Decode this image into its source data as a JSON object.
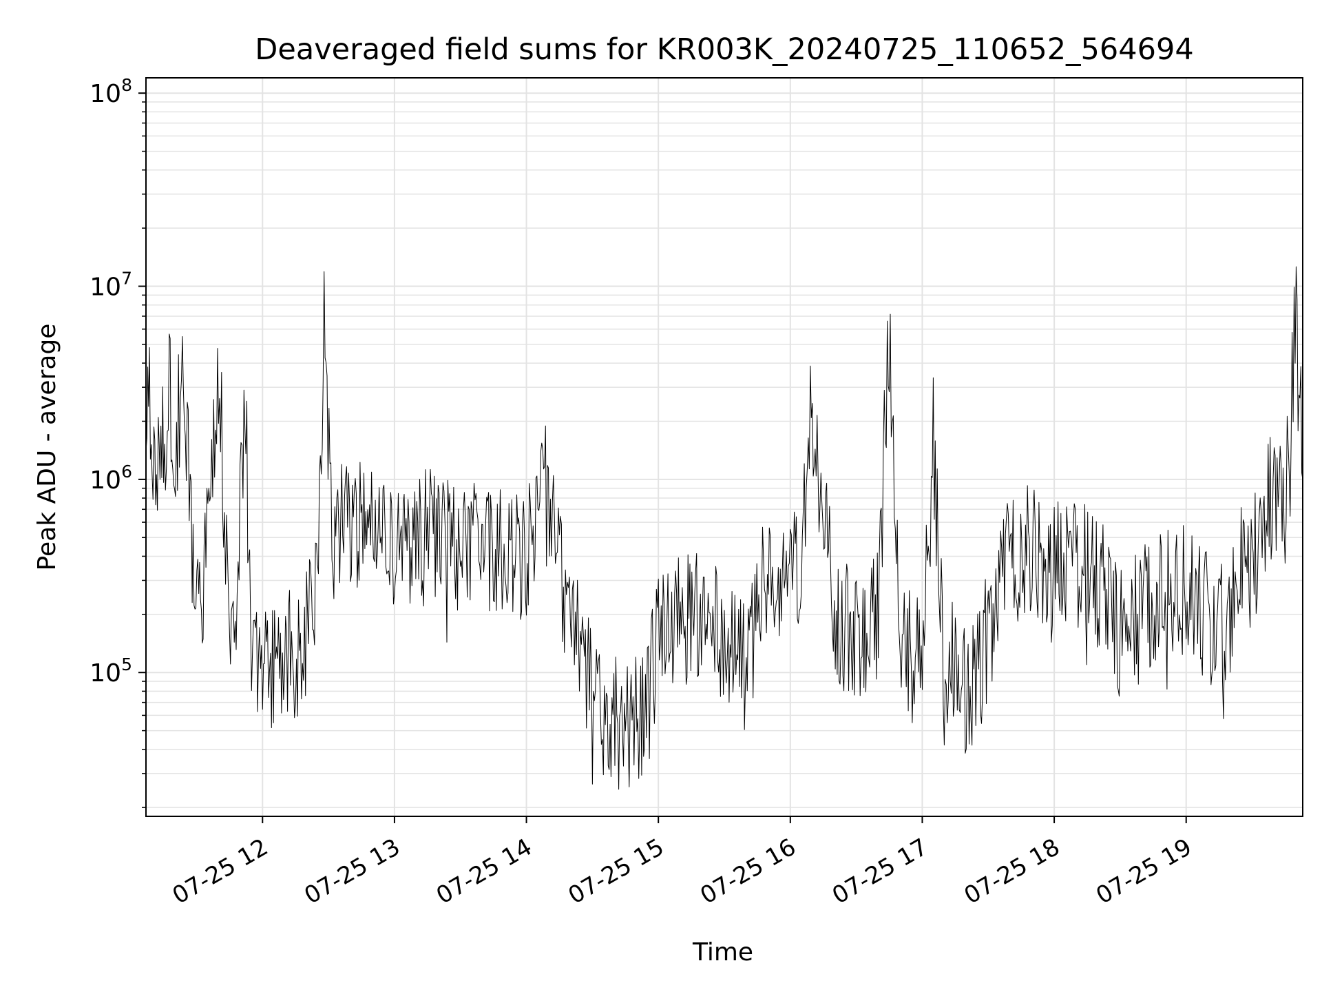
{
  "chart_data": {
    "type": "line",
    "title": "Deaveraged field sums for KR003K_20240725_110652_564694",
    "xlabel": "Time",
    "ylabel": "Peak ADU - average",
    "x_scale": "time",
    "y_scale": "log",
    "xlim": [
      "2024-07-25 11:07",
      "2024-07-25 19:53"
    ],
    "ylim": [
      18000,
      120000000
    ],
    "x_ticks": [
      {
        "label": "07-25 12",
        "t": "2024-07-25 12:00"
      },
      {
        "label": "07-25 13",
        "t": "2024-07-25 13:00"
      },
      {
        "label": "07-25 14",
        "t": "2024-07-25 14:00"
      },
      {
        "label": "07-25 15",
        "t": "2024-07-25 15:00"
      },
      {
        "label": "07-25 16",
        "t": "2024-07-25 16:00"
      },
      {
        "label": "07-25 17",
        "t": "2024-07-25 17:00"
      },
      {
        "label": "07-25 18",
        "t": "2024-07-25 18:00"
      },
      {
        "label": "07-25 19",
        "t": "2024-07-25 19:00"
      }
    ],
    "y_ticks": [
      {
        "base": "10",
        "exp": "5",
        "value": 100000
      },
      {
        "base": "10",
        "exp": "6",
        "value": 1000000
      },
      {
        "base": "10",
        "exp": "7",
        "value": 10000000
      },
      {
        "base": "10",
        "exp": "8",
        "value": 100000000
      }
    ],
    "grid": true,
    "line_color": "#000000",
    "series": [
      {
        "x": [
          "2024-07-25 11:07",
          "2024-07-25 11:09",
          "2024-07-25 11:11",
          "2024-07-25 11:13",
          "2024-07-25 11:15",
          "2024-07-25 11:18",
          "2024-07-25 11:20",
          "2024-07-25 11:24",
          "2024-07-25 11:28",
          "2024-07-25 11:31",
          "2024-07-25 11:33",
          "2024-07-25 11:36",
          "2024-07-25 11:40",
          "2024-07-25 11:45",
          "2024-07-25 11:48",
          "2024-07-25 11:52",
          "2024-07-25 11:55",
          "2024-07-25 12:00",
          "2024-07-25 12:05",
          "2024-07-25 12:10",
          "2024-07-25 12:15",
          "2024-07-25 12:20",
          "2024-07-25 12:25",
          "2024-07-25 12:28",
          "2024-07-25 12:32",
          "2024-07-25 12:40",
          "2024-07-25 12:50",
          "2024-07-25 13:00",
          "2024-07-25 13:15",
          "2024-07-25 13:30",
          "2024-07-25 13:45",
          "2024-07-25 14:00",
          "2024-07-25 14:10",
          "2024-07-25 14:15",
          "2024-07-25 14:20",
          "2024-07-25 14:25",
          "2024-07-25 14:30",
          "2024-07-25 14:35",
          "2024-07-25 14:45",
          "2024-07-25 14:55",
          "2024-07-25 15:00",
          "2024-07-25 15:10",
          "2024-07-25 15:20",
          "2024-07-25 15:30",
          "2024-07-25 15:40",
          "2024-07-25 15:50",
          "2024-07-25 15:55",
          "2024-07-25 16:00",
          "2024-07-25 16:05",
          "2024-07-25 16:10",
          "2024-07-25 16:20",
          "2024-07-25 16:30",
          "2024-07-25 16:40",
          "2024-07-25 16:45",
          "2024-07-25 16:50",
          "2024-07-25 16:55",
          "2024-07-25 17:00",
          "2024-07-25 17:05",
          "2024-07-25 17:10",
          "2024-07-25 17:15",
          "2024-07-25 17:20",
          "2024-07-25 17:30",
          "2024-07-25 17:40",
          "2024-07-25 17:50",
          "2024-07-25 18:00",
          "2024-07-25 18:10",
          "2024-07-25 18:20",
          "2024-07-25 18:30",
          "2024-07-25 18:40",
          "2024-07-25 18:50",
          "2024-07-25 19:00",
          "2024-07-25 19:10",
          "2024-07-25 19:20",
          "2024-07-25 19:25",
          "2024-07-25 19:30",
          "2024-07-25 19:35",
          "2024-07-25 19:40",
          "2024-07-25 19:45",
          "2024-07-25 19:50",
          "2024-07-25 19:53"
        ],
        "y": [
          1600000,
          2500000,
          1200000,
          1800000,
          1500000,
          2800000,
          1500000,
          3000000,
          500000,
          400000,
          300000,
          600000,
          5000000,
          200000,
          150000,
          3000000,
          120000,
          110000,
          100000,
          130000,
          120000,
          150000,
          400000,
          6000000,
          500000,
          600000,
          500000,
          450000,
          500000,
          450000,
          400000,
          420000,
          1000000,
          350000,
          200000,
          150000,
          80000,
          60000,
          55000,
          70000,
          150000,
          180000,
          200000,
          150000,
          100000,
          400000,
          350000,
          300000,
          350000,
          2500000,
          200000,
          150000,
          200000,
          6000000,
          150000,
          120000,
          100000,
          1500000,
          80000,
          150000,
          70000,
          150000,
          400000,
          450000,
          350000,
          350000,
          300000,
          150000,
          200000,
          300000,
          250000,
          200000,
          150000,
          400000,
          350000,
          700000,
          900000,
          800000,
          7000000,
          1000000
        ]
      }
    ]
  }
}
